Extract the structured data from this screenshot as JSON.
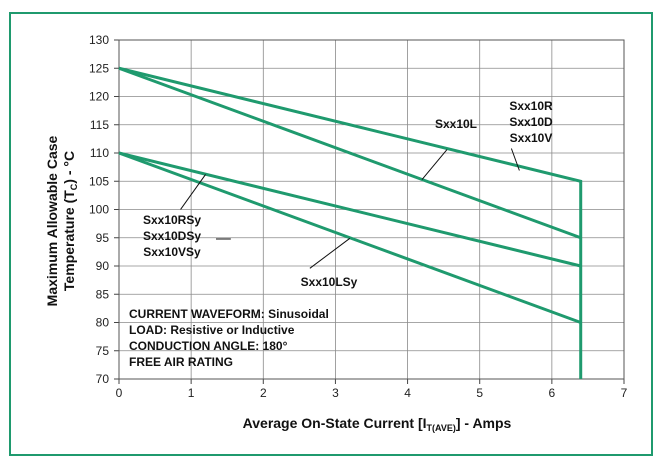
{
  "chart_data": {
    "type": "line",
    "xlabel": "Average On-State Current [I",
    "xlabel_sub": "T(AVE)",
    "xlabel_tail": "] - Amps",
    "ylabel_line1": "Maximum Allowable Case",
    "ylabel_line2_pre": "Temperature (T",
    "ylabel_line2_sub": "C",
    "ylabel_line2_post": ") - °C",
    "xlim": [
      0,
      7
    ],
    "ylim": [
      70,
      130
    ],
    "x_ticks": [
      "0",
      "1",
      "2",
      "3",
      "4",
      "5",
      "6",
      "7"
    ],
    "y_ticks": [
      "70",
      "75",
      "80",
      "85",
      "90",
      "95",
      "100",
      "105",
      "110",
      "115",
      "120",
      "125",
      "130"
    ],
    "grid": true,
    "line_color": "#1f9a6e",
    "series": [
      {
        "name": "Sxx10R Sxx10D Sxx10V",
        "x": [
          0,
          6.4,
          6.4
        ],
        "y": [
          125,
          105,
          70
        ]
      },
      {
        "name": "Sxx10L",
        "x": [
          0,
          6.4
        ],
        "y": [
          125,
          95
        ]
      },
      {
        "name": "Sxx10RSy Sxx10DSy Sxx10VSy",
        "x": [
          0,
          6.4
        ],
        "y": [
          110,
          90
        ]
      },
      {
        "name": "Sxx10LSy",
        "x": [
          0,
          6.4
        ],
        "y": [
          110,
          80
        ]
      }
    ],
    "labels": {
      "group_high": [
        "Sxx10R",
        "Sxx10D",
        "Sxx10V"
      ],
      "l_high": "Sxx10L",
      "group_low": [
        "Sxx10RSy",
        "Sxx10DSy",
        "Sxx10VSy"
      ],
      "l_low": "Sxx10LSy"
    },
    "annotations": [
      "CURRENT WAVEFORM: Sinusoidal",
      "LOAD: Resistive or Inductive",
      "CONDUCTION ANGLE: 180°",
      "FREE AIR RATING"
    ]
  }
}
